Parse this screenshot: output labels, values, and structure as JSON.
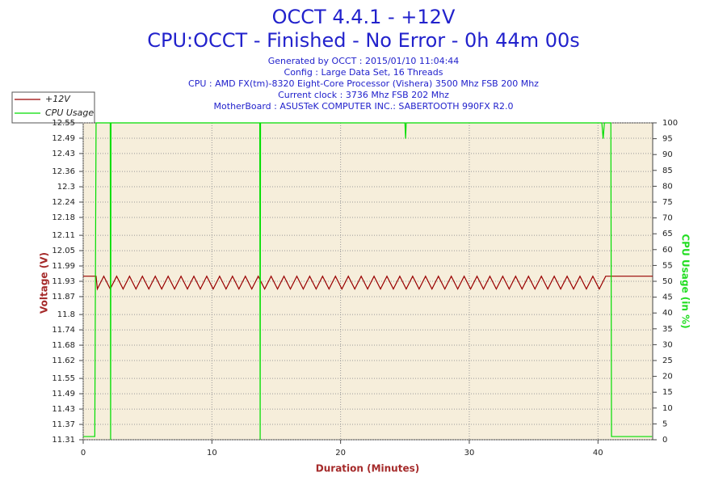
{
  "chart_data": {
    "type": "line",
    "title": "OCCT 4.4.1 - +12V",
    "subtitle": "CPU:OCCT - Finished - No Error - 0h 44m 00s",
    "info": [
      "Generated by OCCT : 2015/01/10 11:04:44",
      "Config : Large Data Set, 16 Threads",
      "CPU : AMD FX(tm)-8320 Eight-Core Processor (Vishera) 3500 Mhz FSB 200 Mhz",
      "Current clock : 3736 Mhz FSB 202 Mhz",
      "MotherBoard : ASUSTeK COMPUTER INC.: SABERTOOTH 990FX R2.0"
    ],
    "x_label": "Duration (Minutes)",
    "y_label": "Voltage (V)",
    "y2_label": "CPU Usage (in %)",
    "xlim": [
      0,
      44.25
    ],
    "xticks": [
      0,
      10,
      20,
      30,
      40
    ],
    "ylim": [
      11.31,
      12.55
    ],
    "yticks": [
      11.31,
      11.37,
      11.43,
      11.49,
      11.55,
      11.62,
      11.68,
      11.74,
      11.8,
      11.87,
      11.93,
      11.99,
      12.05,
      12.11,
      12.18,
      12.24,
      12.3,
      12.36,
      12.43,
      12.49,
      12.55
    ],
    "y2lim": [
      0,
      100
    ],
    "y2ticks": [
      0,
      5,
      10,
      15,
      20,
      25,
      30,
      35,
      40,
      45,
      50,
      55,
      60,
      65,
      70,
      75,
      80,
      85,
      90,
      95,
      100
    ],
    "grid": true,
    "series": [
      {
        "name": "+12V",
        "color": "#990000",
        "x": [
          0,
          1.0,
          1.1,
          1.6,
          2.1,
          2.6,
          3.1,
          3.6,
          4.1,
          4.6,
          5.1,
          5.6,
          6.1,
          6.6,
          7.1,
          7.6,
          8.1,
          8.6,
          9.1,
          9.6,
          10.1,
          10.6,
          11.1,
          11.6,
          12.1,
          12.6,
          13.1,
          13.6,
          14.1,
          14.6,
          15.1,
          15.6,
          16.1,
          16.6,
          17.1,
          17.6,
          18.1,
          18.6,
          19.1,
          19.6,
          20.1,
          20.6,
          21.1,
          21.6,
          22.1,
          22.6,
          23.1,
          23.6,
          24.1,
          24.6,
          25.1,
          25.6,
          26.1,
          26.6,
          27.1,
          27.6,
          28.1,
          28.6,
          29.1,
          29.6,
          30.1,
          30.6,
          31.1,
          31.6,
          32.1,
          32.6,
          33.1,
          33.6,
          34.1,
          34.6,
          35.1,
          35.6,
          36.1,
          36.6,
          37.1,
          37.6,
          38.1,
          38.6,
          39.1,
          39.6,
          40.1,
          40.6,
          41.0,
          44.25
        ],
        "values": [
          11.95,
          11.95,
          11.9,
          11.95,
          11.9,
          11.95,
          11.9,
          11.95,
          11.9,
          11.95,
          11.9,
          11.95,
          11.9,
          11.95,
          11.9,
          11.95,
          11.9,
          11.95,
          11.9,
          11.95,
          11.9,
          11.95,
          11.9,
          11.95,
          11.9,
          11.95,
          11.9,
          11.95,
          11.9,
          11.95,
          11.9,
          11.95,
          11.9,
          11.95,
          11.9,
          11.95,
          11.9,
          11.95,
          11.9,
          11.95,
          11.9,
          11.95,
          11.9,
          11.95,
          11.9,
          11.95,
          11.9,
          11.95,
          11.9,
          11.95,
          11.9,
          11.95,
          11.9,
          11.95,
          11.9,
          11.95,
          11.9,
          11.95,
          11.9,
          11.95,
          11.9,
          11.95,
          11.9,
          11.95,
          11.9,
          11.95,
          11.9,
          11.95,
          11.9,
          11.95,
          11.9,
          11.95,
          11.9,
          11.95,
          11.9,
          11.95,
          11.9,
          11.95,
          11.9,
          11.95,
          11.9,
          11.95,
          11.95,
          11.95
        ]
      },
      {
        "name": "CPU Usage",
        "color": "#00dd00",
        "axis": "y2",
        "x": [
          0,
          0.9,
          1.0,
          2.1,
          2.13,
          2.16,
          13.72,
          13.75,
          13.78,
          25.0,
          25.05,
          25.1,
          40.3,
          40.4,
          40.5,
          41.0,
          41.05,
          44.2
        ],
        "values": [
          1,
          1,
          100,
          100,
          0,
          100,
          100,
          0,
          100,
          100,
          95,
          100,
          100,
          95,
          100,
          100,
          1,
          1
        ]
      }
    ]
  }
}
